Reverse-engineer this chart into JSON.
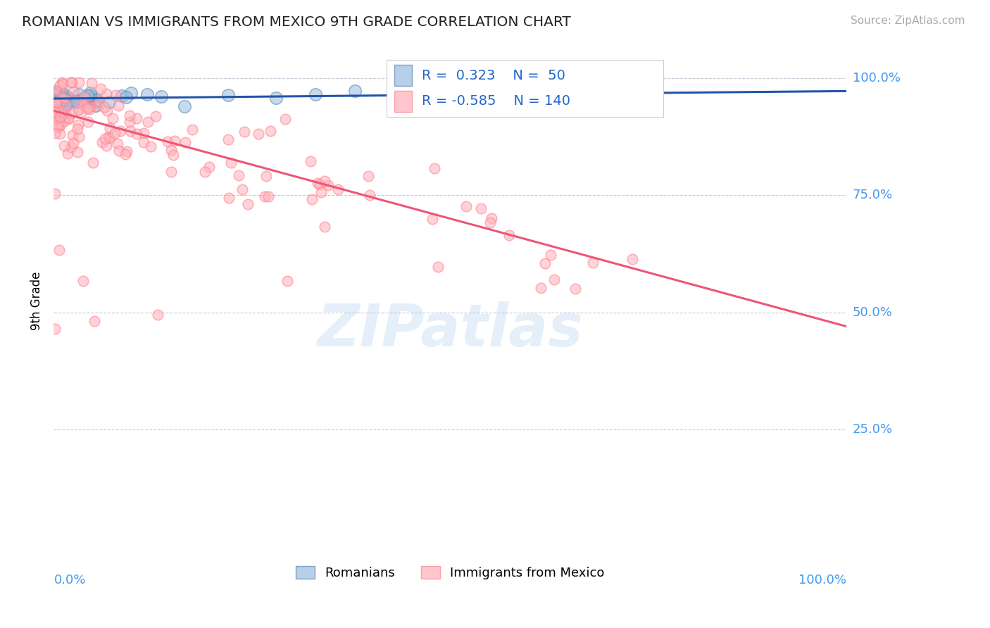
{
  "title": "ROMANIAN VS IMMIGRANTS FROM MEXICO 9TH GRADE CORRELATION CHART",
  "source": "Source: ZipAtlas.com",
  "ylabel": "9th Grade",
  "r_romanian": 0.323,
  "n_romanian": 50,
  "r_mexico": -0.585,
  "n_mexico": 140,
  "watermark": "ZIPatlas",
  "blue_scatter_face": "#99BBDD",
  "blue_scatter_edge": "#5588BB",
  "pink_scatter_face": "#FFB0B8",
  "pink_scatter_edge": "#FF8090",
  "blue_line_color": "#2255AA",
  "pink_line_color": "#EE5577",
  "label_color": "#2266CC",
  "bg_color": "#FFFFFF",
  "grid_color": "#BBBBCC",
  "right_axis_color": "#4499EE",
  "title_color": "#222222",
  "source_color": "#AAAAAA",
  "watermark_color": "#AACCEE",
  "legend_edge_color": "#CCCCCC",
  "ylim_low": 0.0,
  "ylim_high": 1.05,
  "xlim_low": 0.0,
  "xlim_high": 1.0,
  "grid_yticks": [
    0.25,
    0.5,
    0.75,
    1.0
  ],
  "right_labels": {
    "1.0": "100.0%",
    "0.75": "75.0%",
    "0.50": "50.0%",
    "0.25": "25.0%"
  },
  "rom_line_x0": 0.0,
  "rom_line_x1": 1.0,
  "rom_line_y0": 0.956,
  "rom_line_y1": 0.972,
  "mex_line_x0": 0.0,
  "mex_line_x1": 1.0,
  "mex_line_y0": 0.93,
  "mex_line_y1": 0.47
}
